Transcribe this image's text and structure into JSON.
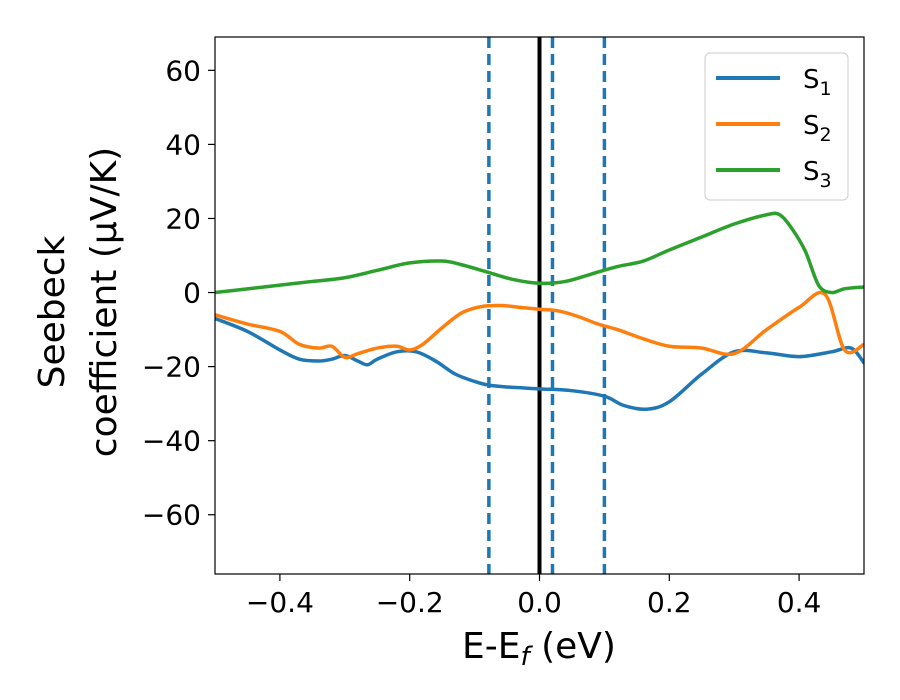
{
  "chart_data": {
    "type": "line",
    "title": "",
    "xlabel": "E-E",
    "xlabel_sub": "f",
    "xlabel_tail": " (eV)",
    "ylabel_line1": "Seebeck",
    "ylabel_line2": "coefficient  (μV/K)",
    "xlim": [
      -0.5,
      0.5
    ],
    "ylim": [
      -76,
      69
    ],
    "xticks": [
      -0.4,
      -0.2,
      0.0,
      0.2,
      0.4
    ],
    "xtick_labels": [
      "−0.4",
      "−0.2",
      "0.0",
      "0.2",
      "0.4"
    ],
    "yticks": [
      -60,
      -40,
      -20,
      0,
      20,
      40,
      60
    ],
    "ytick_labels": [
      "−60",
      "−40",
      "−20",
      "0",
      "20",
      "40",
      "60"
    ],
    "legend_position": "top-right",
    "vlines": [
      {
        "x": -0.078,
        "style": "dashed",
        "color": "#1f77b4"
      },
      {
        "x": 0.0,
        "style": "solid",
        "color": "#000000"
      },
      {
        "x": 0.02,
        "style": "dashed",
        "color": "#1f77b4"
      },
      {
        "x": 0.1,
        "style": "dashed",
        "color": "#1f77b4"
      }
    ],
    "series": [
      {
        "name": "S",
        "sub": "1",
        "color": "#1f77b4",
        "x": [
          -0.5,
          -0.45,
          -0.4,
          -0.37,
          -0.34,
          -0.32,
          -0.3,
          -0.28,
          -0.265,
          -0.25,
          -0.22,
          -0.19,
          -0.16,
          -0.13,
          -0.1,
          -0.078,
          -0.05,
          0.0,
          0.05,
          0.1,
          0.13,
          0.165,
          0.2,
          0.25,
          0.3,
          0.35,
          0.4,
          0.45,
          0.48,
          0.5
        ],
        "values": [
          -7,
          -10.5,
          -15.5,
          -18,
          -18.5,
          -18,
          -17,
          -18.5,
          -19.5,
          -18,
          -16,
          -16,
          -18.5,
          -22,
          -24,
          -25,
          -25.5,
          -26,
          -26.5,
          -28,
          -30.5,
          -31.5,
          -29.5,
          -22,
          -16,
          -16.3,
          -17.3,
          -16,
          -15,
          -19
        ]
      },
      {
        "name": "S",
        "sub": "2",
        "color": "#ff7f0e",
        "x": [
          -0.5,
          -0.45,
          -0.4,
          -0.37,
          -0.34,
          -0.32,
          -0.3,
          -0.28,
          -0.25,
          -0.22,
          -0.2,
          -0.18,
          -0.15,
          -0.12,
          -0.09,
          -0.06,
          -0.03,
          0.0,
          0.03,
          0.06,
          0.09,
          0.12,
          0.16,
          0.2,
          0.25,
          0.3,
          0.35,
          0.4,
          0.44,
          0.47,
          0.5
        ],
        "values": [
          -6,
          -8.5,
          -10.5,
          -14,
          -15,
          -14.5,
          -17.5,
          -16.5,
          -15,
          -14.5,
          -15.5,
          -14,
          -9.5,
          -5.5,
          -3.8,
          -3.5,
          -4,
          -4.5,
          -5,
          -6.5,
          -8.5,
          -10,
          -12.5,
          -14.5,
          -15,
          -16.5,
          -10,
          -4,
          -0.5,
          -15.5,
          -14
        ]
      },
      {
        "name": "S",
        "sub": "3",
        "color": "#2ca02c",
        "x": [
          -0.5,
          -0.45,
          -0.4,
          -0.35,
          -0.3,
          -0.25,
          -0.2,
          -0.15,
          -0.12,
          -0.08,
          -0.04,
          0.0,
          0.04,
          0.08,
          0.12,
          0.16,
          0.2,
          0.25,
          0.3,
          0.35,
          0.37,
          0.39,
          0.41,
          0.43,
          0.45,
          0.47,
          0.5
        ],
        "values": [
          0,
          1,
          2,
          3,
          4,
          6,
          8,
          8.5,
          7.5,
          5.5,
          3.5,
          2.5,
          3,
          5,
          7,
          8.5,
          11.5,
          15,
          18.5,
          21,
          21,
          17,
          11,
          2,
          0,
          1,
          1.5
        ]
      }
    ]
  }
}
